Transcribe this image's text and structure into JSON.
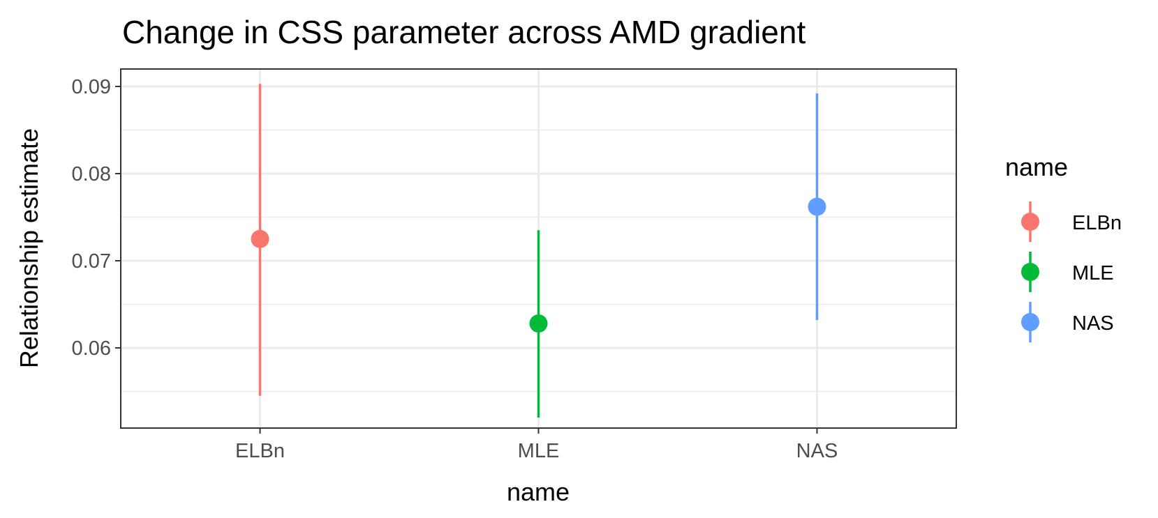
{
  "chart_data": {
    "type": "pointrange",
    "title": "Change in CSS parameter across AMD gradient",
    "xlabel": "name",
    "ylabel": "Relationship estimate",
    "categories": [
      "ELBn",
      "MLE",
      "NAS"
    ],
    "points": [
      {
        "name": "ELBn",
        "estimate": 0.0725,
        "lower": 0.0545,
        "upper": 0.0903,
        "color": "#F8766D"
      },
      {
        "name": "MLE",
        "estimate": 0.0628,
        "lower": 0.052,
        "upper": 0.0735,
        "color": "#00BA38"
      },
      {
        "name": "NAS",
        "estimate": 0.0762,
        "lower": 0.0632,
        "upper": 0.0892,
        "color": "#619CFF"
      }
    ],
    "ylim": [
      0.0508,
      0.092
    ],
    "y_ticks": [
      0.06,
      0.07,
      0.08,
      0.09
    ],
    "y_tick_labels": [
      "0.06",
      "0.07",
      "0.08",
      "0.09"
    ],
    "grid": true,
    "legend": {
      "title": "name",
      "position": "right",
      "entries": [
        "ELBn",
        "MLE",
        "NAS"
      ]
    },
    "colors": {
      "ELBn": "#F8766D",
      "MLE": "#00BA38",
      "NAS": "#619CFF"
    }
  }
}
